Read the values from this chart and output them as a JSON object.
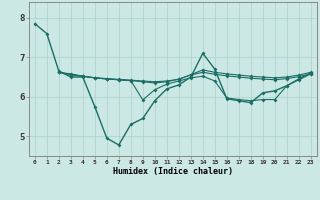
{
  "xlabel": "Humidex (Indice chaleur)",
  "bg_color": "#cce8e4",
  "line_color": "#1a6e65",
  "grid_color": "#b0d4ce",
  "xlim": [
    -0.5,
    23.5
  ],
  "ylim": [
    4.5,
    8.4
  ],
  "yticks": [
    5,
    6,
    7,
    8
  ],
  "xticks": [
    0,
    1,
    2,
    3,
    4,
    5,
    6,
    7,
    8,
    9,
    10,
    11,
    12,
    13,
    14,
    15,
    16,
    17,
    18,
    19,
    20,
    21,
    22,
    23
  ],
  "series": [
    [
      7.85,
      7.6,
      6.65,
      6.5,
      6.5,
      5.75,
      4.95,
      4.78,
      5.3,
      5.45,
      5.9,
      6.2,
      6.3,
      6.5,
      7.1,
      6.7,
      5.95,
      5.9,
      5.85,
      6.1,
      6.15,
      6.28,
      6.45,
      6.6
    ],
    [
      null,
      null,
      6.62,
      6.58,
      6.52,
      6.48,
      6.46,
      6.44,
      6.42,
      6.4,
      6.38,
      6.4,
      6.44,
      6.56,
      6.68,
      6.62,
      6.58,
      6.55,
      6.52,
      6.5,
      6.48,
      6.5,
      6.55,
      6.62
    ],
    [
      null,
      null,
      6.62,
      6.56,
      6.52,
      6.48,
      6.45,
      6.43,
      6.41,
      6.38,
      6.35,
      6.38,
      6.45,
      6.55,
      6.62,
      6.57,
      6.53,
      6.5,
      6.47,
      6.45,
      6.43,
      6.46,
      6.51,
      6.58
    ],
    [
      null,
      null,
      6.62,
      6.56,
      6.52,
      6.48,
      6.45,
      6.43,
      6.41,
      5.92,
      6.18,
      6.32,
      6.4,
      6.48,
      6.52,
      6.4,
      5.97,
      5.93,
      5.9,
      5.93,
      5.93,
      6.28,
      6.43,
      6.58
    ]
  ]
}
